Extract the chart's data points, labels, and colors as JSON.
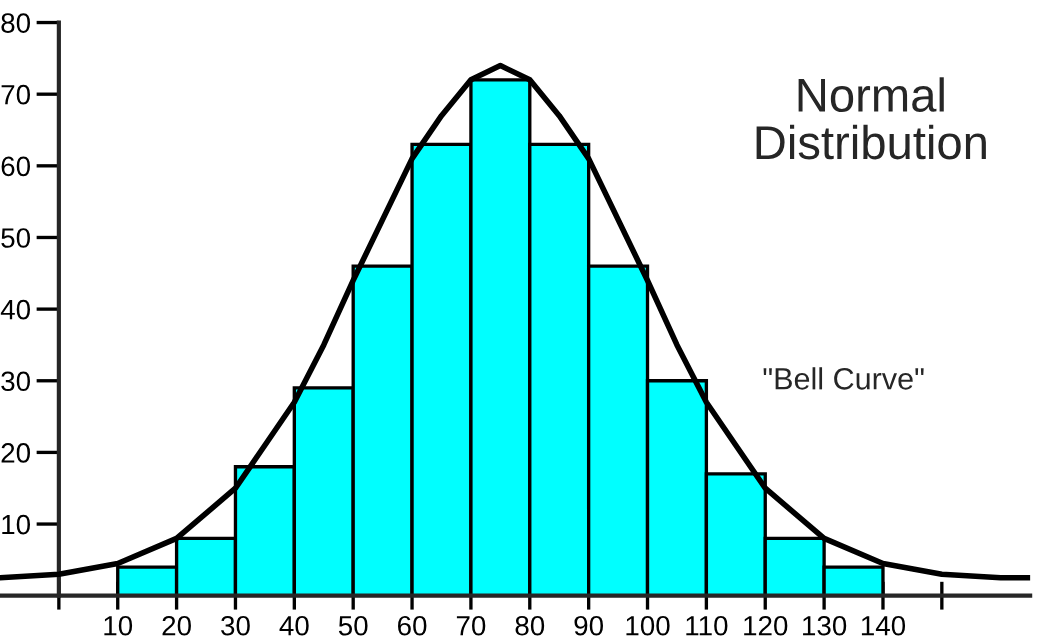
{
  "chart_data": {
    "type": "histogram",
    "title": "Normal Distribution",
    "bins": [
      10,
      20,
      30,
      40,
      50,
      60,
      70,
      80,
      90,
      100,
      110,
      120,
      130,
      140
    ],
    "values": [
      4,
      8,
      18,
      29,
      46,
      63,
      72,
      63,
      46,
      30,
      17,
      8,
      4
    ],
    "color": "#00ffff",
    "series": [
      {
        "type": "line",
        "color": "#000000",
        "x": [
          -10,
          0,
          10,
          20,
          30,
          35,
          40,
          45,
          50,
          60,
          65,
          70,
          75,
          80,
          85,
          90,
          100,
          105,
          110,
          115,
          120,
          130,
          140,
          150,
          160,
          165
        ],
        "values": [
          2.5,
          3,
          4.5,
          8,
          15,
          21,
          27,
          35,
          44,
          61,
          67,
          72,
          74,
          72,
          67,
          61,
          44,
          35,
          27,
          21,
          15,
          8,
          4.5,
          3,
          2.5,
          2.5
        ]
      }
    ],
    "annotations": [
      "\"Bell Curve\""
    ],
    "xlim": [
      -10,
      165
    ],
    "ylim": [
      0,
      80
    ],
    "xticks": [
      {
        "value": 0,
        "label": null
      },
      10,
      20,
      30,
      40,
      50,
      60,
      70,
      80,
      90,
      100,
      110,
      120,
      130,
      140,
      {
        "value": 150,
        "label": null
      }
    ],
    "yticks": [
      10,
      20,
      30,
      40,
      50,
      60,
      70,
      80
    ],
    "grid": false,
    "legend": false
  }
}
